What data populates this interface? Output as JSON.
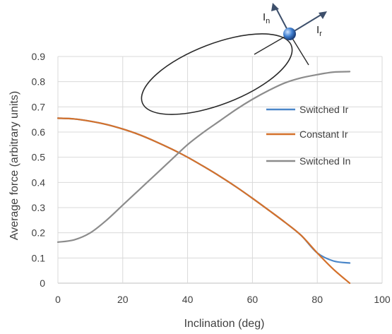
{
  "chart_data": {
    "type": "line",
    "title": "",
    "xlabel": "Inclination (deg)",
    "ylabel": "Average force (arbitrary units)",
    "xlim": [
      0,
      100
    ],
    "ylim": [
      0,
      0.9
    ],
    "x_ticks": [
      "0",
      "20",
      "40",
      "60",
      "80",
      "100"
    ],
    "y_ticks": [
      "0",
      "0.1",
      "0.2",
      "0.3",
      "0.4",
      "0.5",
      "0.6",
      "0.7",
      "0.8",
      "0.9"
    ],
    "grid": true,
    "legend_position": "right",
    "series": [
      {
        "name": "Switched Ir",
        "color": "#4a86c8",
        "x": [
          0,
          5,
          10,
          15,
          20,
          25,
          30,
          35,
          40,
          45,
          50,
          55,
          60,
          65,
          70,
          75,
          80,
          85,
          90
        ],
        "y": [
          0.655,
          0.652,
          0.643,
          0.63,
          0.612,
          0.59,
          0.563,
          0.533,
          0.5,
          0.463,
          0.424,
          0.382,
          0.337,
          0.29,
          0.242,
          0.19,
          0.12,
          0.088,
          0.08
        ]
      },
      {
        "name": "Constant Ir",
        "color": "#d4712b",
        "x": [
          0,
          5,
          10,
          15,
          20,
          25,
          30,
          35,
          40,
          45,
          50,
          55,
          60,
          65,
          70,
          75,
          80,
          85,
          90
        ],
        "y": [
          0.655,
          0.652,
          0.643,
          0.63,
          0.612,
          0.59,
          0.563,
          0.533,
          0.5,
          0.463,
          0.424,
          0.382,
          0.337,
          0.29,
          0.242,
          0.19,
          0.12,
          0.055,
          0.0
        ]
      },
      {
        "name": "Switched In",
        "color": "#8c8c8c",
        "x": [
          0,
          5,
          10,
          15,
          20,
          25,
          30,
          35,
          40,
          45,
          50,
          55,
          60,
          65,
          70,
          75,
          80,
          85,
          90
        ],
        "y": [
          0.163,
          0.172,
          0.2,
          0.25,
          0.31,
          0.37,
          0.43,
          0.49,
          0.55,
          0.6,
          0.645,
          0.69,
          0.73,
          0.765,
          0.795,
          0.815,
          0.828,
          0.838,
          0.84
        ]
      }
    ],
    "inset_diagram": {
      "labels": {
        "normal": "I",
        "normal_sub": "n",
        "radial": "I",
        "radial_sub": "r"
      },
      "orbit_color": "#2a2a2a",
      "body_color": "#3f7fd0",
      "arrow_color": "#3d4f6b"
    }
  }
}
